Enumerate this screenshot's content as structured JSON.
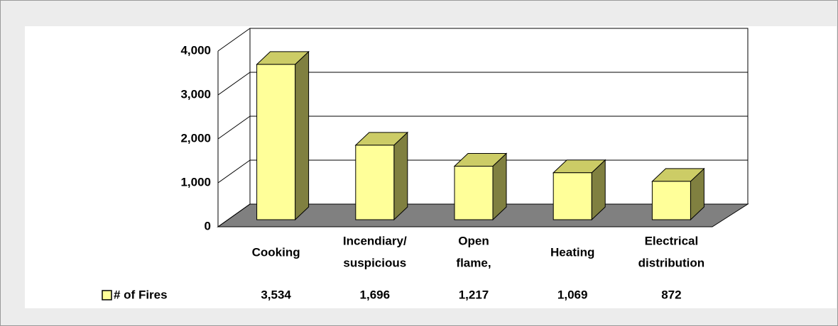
{
  "chart_data": {
    "type": "bar3d",
    "categories": [
      [
        "Cooking"
      ],
      [
        "Incendiary/",
        "suspicious"
      ],
      [
        "Open",
        "flame,"
      ],
      [
        "Heating"
      ],
      [
        "Electrical",
        "distribution"
      ]
    ],
    "series": [
      {
        "name": "# of Fires",
        "color": "#ffff99",
        "values": [
          3534,
          1696,
          1217,
          1069,
          872
        ],
        "value_labels": [
          "3,534",
          "1,696",
          "1,217",
          "1,069",
          "872"
        ]
      }
    ],
    "ylim": [
      0,
      4000
    ],
    "yticks": [
      0,
      {
        "value": 1000,
        "label": "1,000"
      },
      {
        "value": 2000,
        "label": "2,000"
      },
      {
        "value": 3000,
        "label": "3,000"
      },
      {
        "value": 4000,
        "label": "4,000"
      }
    ],
    "grid": true
  }
}
